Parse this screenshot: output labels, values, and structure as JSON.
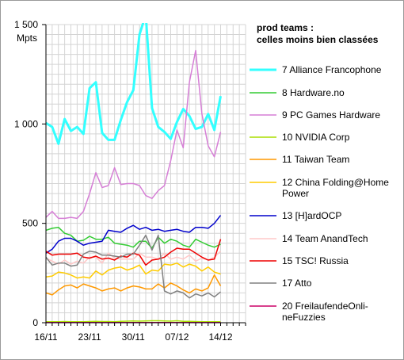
{
  "chart_data": {
    "type": "line",
    "title": "prod teams :",
    "subtitle": "celles moins bien classées",
    "ylabel": "Mpts",
    "ylim": [
      0,
      1500
    ],
    "y_ticks": [
      {
        "value": 0,
        "label": "0"
      },
      {
        "value": 500,
        "label": "500"
      },
      {
        "value": 1000,
        "label": "1 000"
      },
      {
        "value": 1500,
        "label": "1 500"
      }
    ],
    "x_count": 33,
    "x_ticks": [
      {
        "index": 0,
        "label": "16/11"
      },
      {
        "index": 7,
        "label": "23/11"
      },
      {
        "index": 14,
        "label": "30/11"
      },
      {
        "index": 21,
        "label": "07/12"
      },
      {
        "index": 28,
        "label": "14/12"
      }
    ],
    "legend_position": "right",
    "grid": true,
    "series": [
      {
        "name": "7 Alliance Francophone",
        "color": "#33ffff",
        "width": 3,
        "values": [
          1005,
          985,
          900,
          1025,
          965,
          985,
          950,
          1180,
          1210,
          955,
          920,
          920,
          1020,
          1110,
          1170,
          1450,
          1550,
          1080,
          985,
          960,
          925,
          1010,
          1075,
          1040,
          975,
          985,
          1050,
          970,
          1140
        ]
      },
      {
        "name": "8 Hardware.no",
        "color": "#33cc33",
        "width": 1.5,
        "values": [
          465,
          475,
          480,
          450,
          440,
          410,
          415,
          435,
          420,
          420,
          430,
          400,
          395,
          390,
          380,
          410,
          410,
          375,
          430,
          400,
          420,
          410,
          390,
          380,
          420,
          405,
          390,
          380,
          395
        ]
      },
      {
        "name": "9 PC Games Hardware",
        "color": "#d67fd6",
        "width": 1.5,
        "values": [
          530,
          560,
          525,
          525,
          530,
          525,
          560,
          650,
          755,
          680,
          690,
          780,
          695,
          700,
          700,
          690,
          640,
          625,
          665,
          690,
          815,
          970,
          880,
          1210,
          1370,
          1050,
          890,
          835,
          960
        ]
      },
      {
        "name": "10 NVIDIA Corp",
        "color": "#aadd00",
        "width": 1.5,
        "values": [
          5,
          5,
          5,
          6,
          5,
          5,
          5,
          6,
          7,
          6,
          6,
          5,
          7,
          8,
          9,
          8,
          9,
          10,
          10,
          9,
          8,
          10,
          7,
          7,
          6,
          5,
          5,
          5,
          5
        ]
      },
      {
        "name": "11 Taiwan Team",
        "color": "#ff9900",
        "width": 1.5,
        "values": [
          150,
          140,
          165,
          185,
          190,
          175,
          195,
          185,
          175,
          160,
          170,
          175,
          160,
          175,
          185,
          180,
          170,
          170,
          195,
          175,
          200,
          185,
          165,
          150,
          170,
          160,
          175,
          240,
          185
        ]
      },
      {
        "name": "12 China Folding@Home Power",
        "color": "#ffcc00",
        "width": 1.5,
        "values": [
          230,
          235,
          255,
          250,
          240,
          225,
          230,
          225,
          260,
          240,
          265,
          275,
          280,
          265,
          275,
          290,
          245,
          265,
          260,
          295,
          290,
          300,
          280,
          295,
          285,
          260,
          280,
          255,
          245
        ]
      },
      {
        "name": "13 [H]ardOCP",
        "color": "#0000cc",
        "width": 1.5,
        "values": [
          350,
          370,
          410,
          425,
          425,
          410,
          390,
          400,
          405,
          410,
          465,
          460,
          455,
          475,
          490,
          470,
          480,
          465,
          470,
          460,
          465,
          470,
          460,
          455,
          480,
          480,
          475,
          500,
          540
        ]
      },
      {
        "name": "14 Team AnandTech",
        "color": "#ffc8c8",
        "width": 1.5,
        "values": [
          325,
          310,
          295,
          315,
          295,
          310,
          300,
          330,
          330,
          300,
          350,
          325,
          320,
          320,
          320,
          350,
          330,
          330,
          320,
          350,
          320,
          330,
          320,
          340,
          310,
          325,
          315,
          330,
          360
        ]
      },
      {
        "name": "15 TSC! Russia",
        "color": "#ee0000",
        "width": 1.5,
        "values": [
          360,
          340,
          345,
          345,
          345,
          350,
          330,
          325,
          335,
          320,
          325,
          315,
          335,
          330,
          350,
          340,
          290,
          315,
          320,
          330,
          355,
          375,
          370,
          370,
          350,
          330,
          315,
          320,
          420
        ]
      },
      {
        "name": "17 Atto",
        "color": "#808080",
        "width": 1.5,
        "values": [
          330,
          290,
          300,
          300,
          285,
          290,
          345,
          360,
          355,
          340,
          340,
          335,
          330,
          345,
          345,
          390,
          440,
          365,
          440,
          160,
          145,
          160,
          150,
          125,
          145,
          135,
          150,
          130,
          155
        ]
      },
      {
        "name": "20 FreilaufendeOnli-neFuzzies",
        "color": "#cc0066",
        "width": 1.5,
        "values": [
          1,
          1,
          1,
          1,
          1,
          1,
          1,
          1,
          1,
          1,
          1,
          1,
          1,
          1,
          1,
          1,
          1,
          1,
          1,
          1,
          1,
          1,
          1,
          1,
          1,
          1,
          1,
          1,
          1
        ]
      }
    ]
  }
}
